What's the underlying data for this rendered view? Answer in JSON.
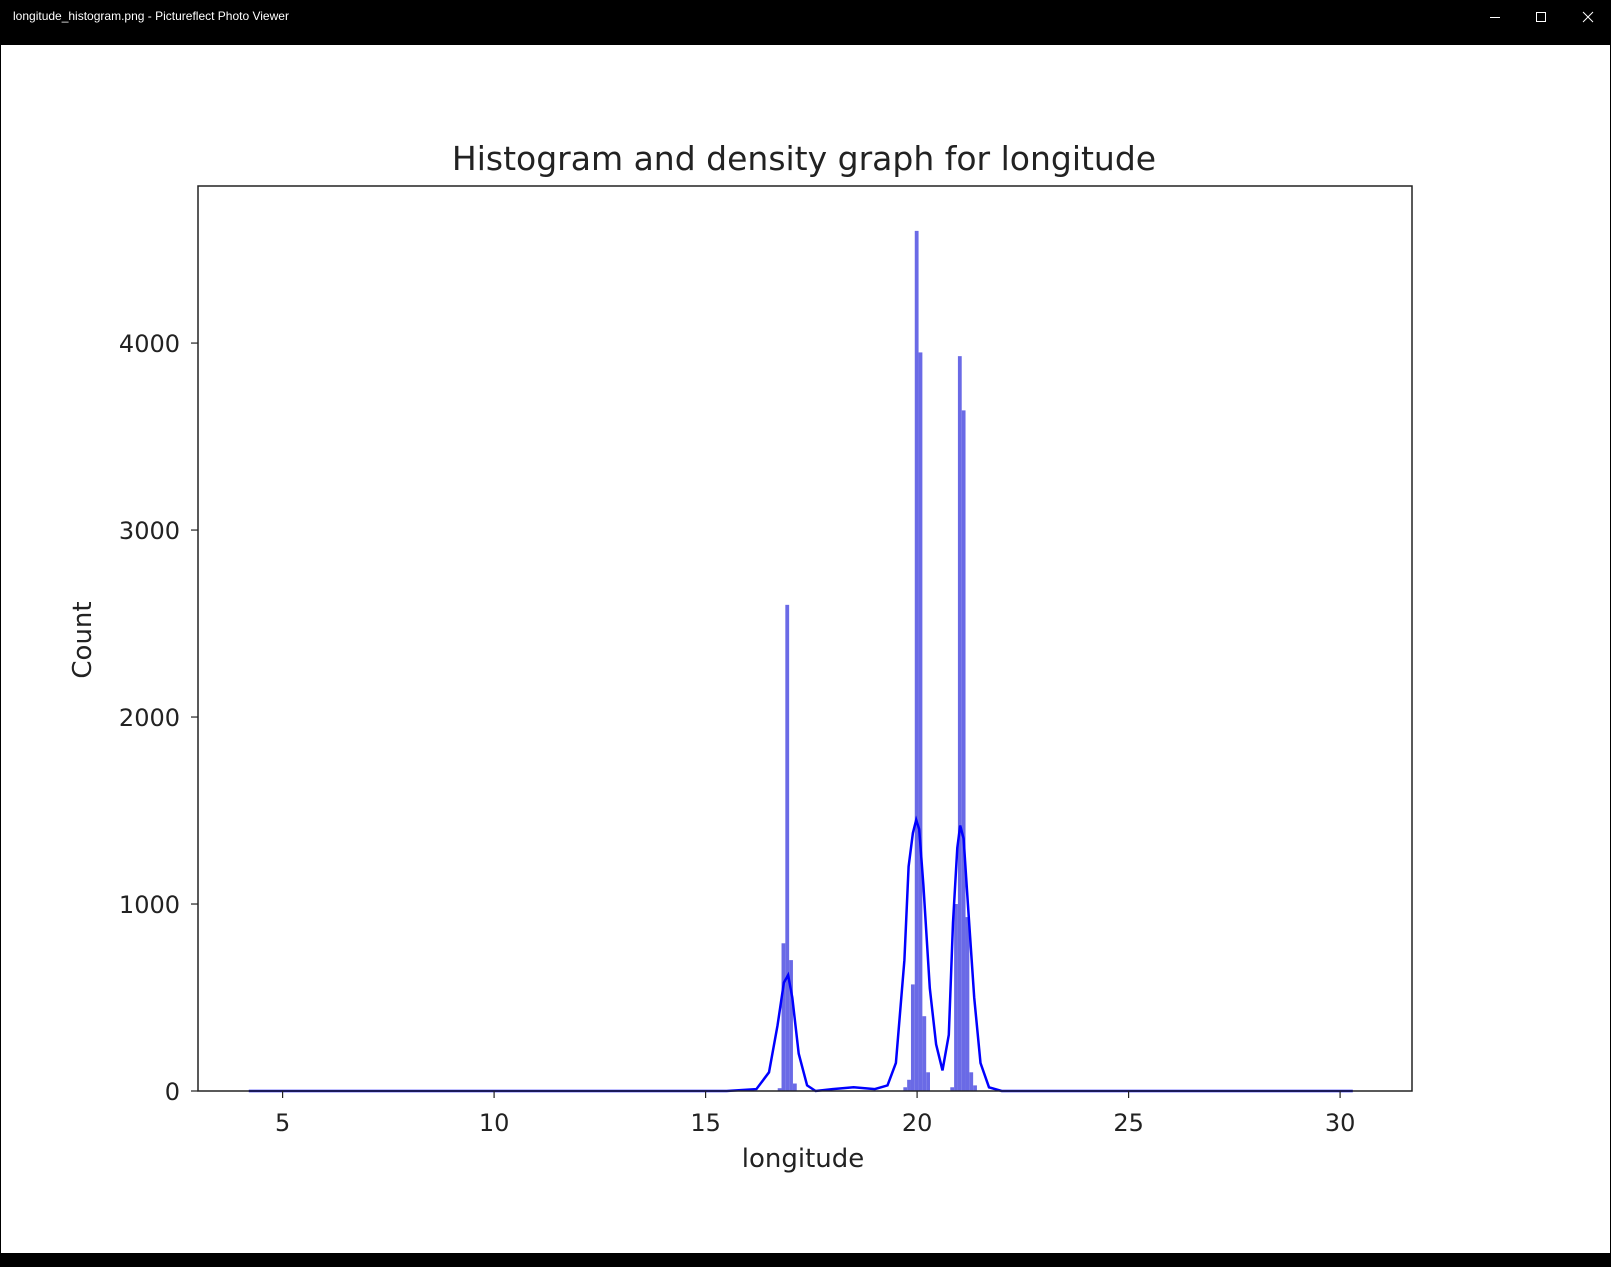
{
  "window": {
    "title": "longitude_histogram.png - Pictureflect Photo Viewer",
    "controls": {
      "minimize_icon": "minimize-icon",
      "maximize_icon": "maximize-icon",
      "close_icon": "close-icon"
    }
  },
  "colors": {
    "bar": "#6a6ae6",
    "kde": "#0000ff",
    "axis": "#222222",
    "background": "#ffffff",
    "titlebar": "#000000"
  },
  "chart_data": {
    "type": "bar",
    "title": "Histogram and density graph for longitude",
    "xlabel": "longitude",
    "ylabel": "Count",
    "xlim": [
      3,
      31.7
    ],
    "ylim": [
      0,
      4840
    ],
    "xticks": [
      5,
      10,
      15,
      20,
      25,
      30
    ],
    "yticks": [
      0,
      1000,
      2000,
      3000,
      4000
    ],
    "grid": false,
    "histogram": {
      "bin_width": 0.09,
      "bins": [
        {
          "x": 16.75,
          "count": 15
        },
        {
          "x": 16.84,
          "count": 790
        },
        {
          "x": 16.93,
          "count": 2600
        },
        {
          "x": 17.02,
          "count": 700
        },
        {
          "x": 17.11,
          "count": 40
        },
        {
          "x": 19.72,
          "count": 20
        },
        {
          "x": 19.81,
          "count": 60
        },
        {
          "x": 19.9,
          "count": 570
        },
        {
          "x": 19.99,
          "count": 4600
        },
        {
          "x": 20.08,
          "count": 3950
        },
        {
          "x": 20.17,
          "count": 400
        },
        {
          "x": 20.26,
          "count": 100
        },
        {
          "x": 20.83,
          "count": 20
        },
        {
          "x": 20.92,
          "count": 1000
        },
        {
          "x": 21.01,
          "count": 3930
        },
        {
          "x": 21.1,
          "count": 3640
        },
        {
          "x": 21.19,
          "count": 930
        },
        {
          "x": 21.28,
          "count": 100
        },
        {
          "x": 21.37,
          "count": 30
        }
      ]
    },
    "density_curve": {
      "x": [
        4.2,
        15.5,
        16.2,
        16.5,
        16.7,
        16.85,
        16.95,
        17.05,
        17.2,
        17.4,
        17.6,
        18.0,
        18.5,
        19.0,
        19.3,
        19.5,
        19.7,
        19.8,
        19.9,
        19.98,
        20.05,
        20.15,
        20.3,
        20.45,
        20.6,
        20.75,
        20.85,
        20.95,
        21.02,
        21.1,
        21.2,
        21.35,
        21.5,
        21.7,
        22.0,
        25.0,
        30.3
      ],
      "y": [
        0,
        0,
        10,
        100,
        350,
        580,
        620,
        500,
        200,
        30,
        0,
        10,
        20,
        10,
        30,
        150,
        700,
        1200,
        1380,
        1450,
        1400,
        1100,
        550,
        250,
        110,
        300,
        900,
        1300,
        1420,
        1350,
        1000,
        500,
        150,
        20,
        0,
        0,
        0
      ]
    }
  }
}
